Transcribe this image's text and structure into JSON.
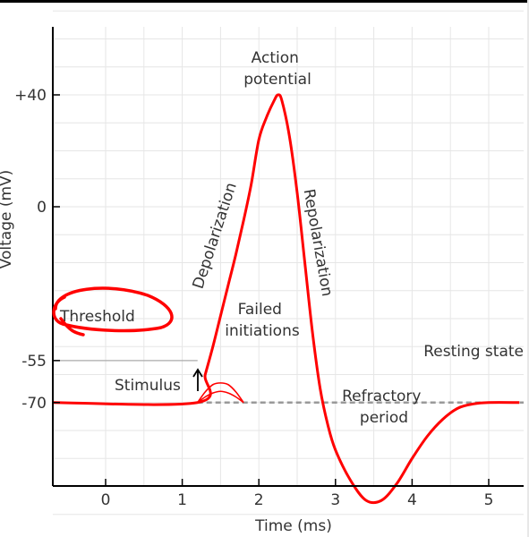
{
  "chart_data": {
    "type": "line",
    "title": "",
    "xlabel": "Time (ms)",
    "ylabel": "Voltage (mV)",
    "xlim": [
      -0.7,
      5.4
    ],
    "ylim": [
      -125,
      75
    ],
    "grid": true,
    "x_ticks": [
      0,
      1,
      2,
      3,
      4,
      5
    ],
    "x_tick_labels": [
      "0",
      "1",
      "2",
      "3",
      "4",
      "5"
    ],
    "y_ticks": [
      40,
      0,
      -55,
      -70
    ],
    "y_tick_labels": [
      "+40",
      "0",
      "-55",
      "-70"
    ],
    "series": [
      {
        "color": "#ff0000",
        "x": [
          -0.7,
          1.2,
          1.3,
          1.4,
          1.5,
          1.6,
          1.7,
          1.8,
          1.9,
          2.0,
          2.1,
          2.2,
          2.25,
          2.3,
          2.4,
          2.5,
          2.6,
          2.7,
          2.8,
          2.9,
          3.0,
          3.2,
          3.4,
          3.6,
          3.8,
          4.0,
          4.2,
          4.4,
          4.6,
          4.8,
          5.0,
          5.4
        ],
        "y": [
          -70,
          -70,
          -60,
          -50,
          -39,
          -28,
          -17,
          -5,
          8,
          24,
          32,
          38,
          40,
          38,
          25,
          5,
          -20,
          -45,
          -65,
          -78,
          -87,
          -98,
          -105,
          -105,
          -99,
          -90,
          -82,
          -76,
          -72,
          -70.5,
          -70,
          -70
        ]
      }
    ],
    "failed_initiations": [
      {
        "x": [
          1.2,
          1.3,
          1.4,
          1.5,
          1.6,
          1.7,
          1.8
        ],
        "y": [
          -70,
          -66.2,
          -63.6,
          -63,
          -63.6,
          -66.2,
          -70
        ]
      },
      {
        "x": [
          1.2,
          1.3,
          1.4,
          1.5,
          1.6,
          1.7,
          1.8
        ],
        "y": [
          -70,
          -68,
          -66.6,
          -66,
          -66.6,
          -68,
          -70
        ]
      }
    ],
    "threshold": -55,
    "resting_potential": -70,
    "resting_dashed_from": 1.2,
    "stimulus_x": 1.2,
    "annotations": {
      "action_potential": [
        "Action",
        "potential"
      ],
      "depolarization": "Depolarization",
      "repolarization": "Repolarization",
      "failed_initiations": [
        "Failed",
        "initiations"
      ],
      "threshold": "Threshold",
      "stimulus": "Stimulus",
      "resting_state": "Resting state",
      "refractory_period": [
        "Refractory",
        "period"
      ]
    },
    "colors": {
      "curve": "#ff0000",
      "threshold_line": "#aaaaaa",
      "resting_dash": "#999999",
      "grid": "#e6e6e6",
      "axes": "#000000",
      "handwritten_circle": "#ff0000"
    }
  }
}
